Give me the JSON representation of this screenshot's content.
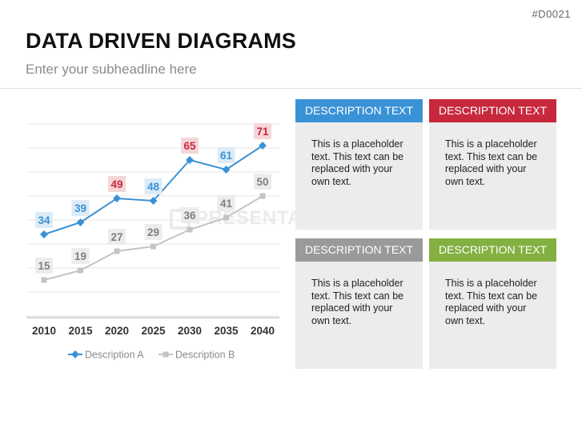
{
  "slide_id": "#D0021",
  "title": "DATA DRIVEN DIAGRAMS",
  "subtitle": "Enter your subheadline here",
  "watermark": "PRESENTATIONLOAD",
  "colors": {
    "series_a": "#3a92d6",
    "series_b": "#c4c4c4",
    "label_a_bg": "#dcebf7",
    "label_a_text": "#3a92d6",
    "label_highlight_bg": "#f4d6d9",
    "label_highlight_text": "#c8283c",
    "label_b_bg": "#ececec",
    "label_b_text": "#808080",
    "card_blue": "#3a92d6",
    "card_red": "#c8283c",
    "card_gray": "#9a9a9a",
    "card_green": "#83b040"
  },
  "chart_data": {
    "type": "line",
    "x": [
      "2010",
      "2015",
      "2020",
      "2025",
      "2030",
      "2035",
      "2040"
    ],
    "series": [
      {
        "name": "Description A",
        "values": [
          34,
          39,
          49,
          48,
          65,
          61,
          71
        ],
        "highlighted": [
          false,
          false,
          true,
          false,
          true,
          false,
          true
        ]
      },
      {
        "name": "Description B",
        "values": [
          15,
          19,
          27,
          29,
          36,
          41,
          50
        ]
      }
    ],
    "ylim": [
      0,
      80
    ],
    "grid": true,
    "legend": "bottom"
  },
  "cards": [
    {
      "header": "DESCRIPTION TEXT",
      "color": "#3a92d6",
      "body": "This is a placeholder text. This text can be replaced with your own text."
    },
    {
      "header": "DESCRIPTION TEXT",
      "color": "#c8283c",
      "body": "This is a placeholder text. This text can be replaced with your own text."
    },
    {
      "header": "DESCRIPTION TEXT",
      "color": "#9a9a9a",
      "body": "This is a placeholder text. This text can be replaced with your own text."
    },
    {
      "header": "DESCRIPTION TEXT",
      "color": "#83b040",
      "body": "This is a placeholder text. This text can be replaced with your own text."
    }
  ]
}
